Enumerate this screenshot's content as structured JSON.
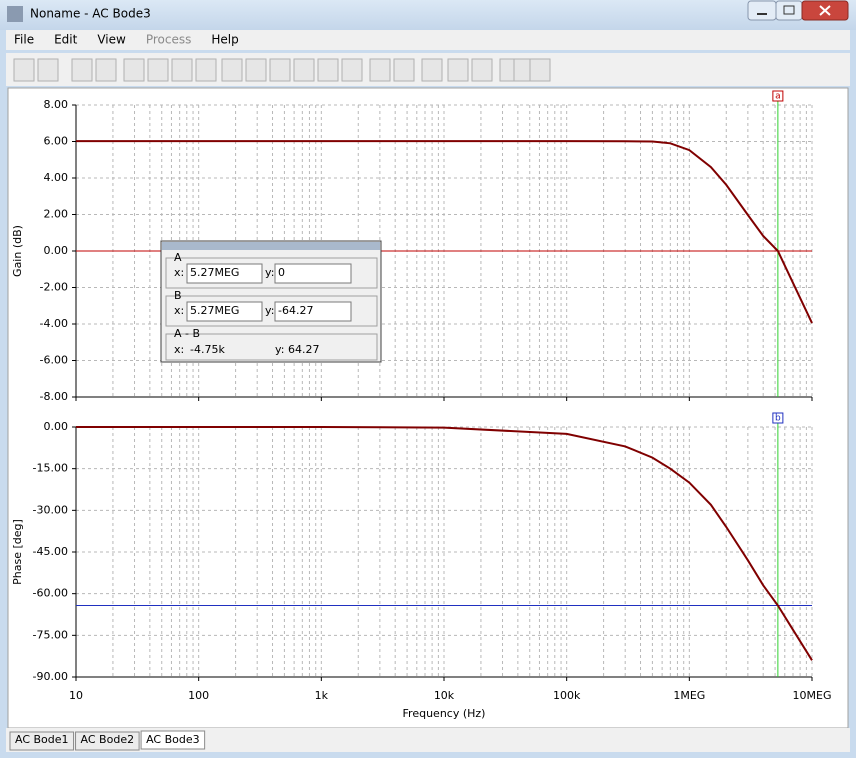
{
  "window": {
    "title": "Noname - AC Bode3"
  },
  "menu": [
    {
      "label": "File",
      "enabled": true
    },
    {
      "label": "Edit",
      "enabled": true
    },
    {
      "label": "View",
      "enabled": true
    },
    {
      "label": "Process",
      "enabled": false
    },
    {
      "label": "Help",
      "enabled": true
    }
  ],
  "chart_data": [
    {
      "type": "line",
      "ylabel": "Gain (dB)",
      "xscale": "log",
      "grid": true,
      "xlim": [
        10,
        10000000
      ],
      "xticks": [
        10,
        100,
        1000,
        10000,
        100000,
        1000000,
        10000000
      ],
      "ylim": [
        -8,
        8
      ],
      "yticks": [
        {
          "value": 8,
          "label": "8.00"
        },
        {
          "value": 6,
          "label": "6.00"
        },
        {
          "value": 4,
          "label": "4.00"
        },
        {
          "value": 2,
          "label": "2.00"
        },
        {
          "value": 0,
          "label": "0.00"
        },
        {
          "value": -2,
          "label": "-2.00"
        },
        {
          "value": -4,
          "label": "-4.00"
        },
        {
          "value": -6,
          "label": "-6.00"
        },
        {
          "value": -8,
          "label": "-8.00"
        }
      ],
      "x": [
        10,
        100,
        1000,
        10000,
        100000,
        300000,
        500000,
        700000,
        1000000,
        1500000,
        2000000,
        3000000,
        4000000,
        5270000,
        7000000,
        10000000
      ],
      "series": [
        {
          "color": "#800000",
          "values": [
            6.02,
            6.02,
            6.02,
            6.02,
            6.02,
            6.01,
            6.0,
            5.9,
            5.53,
            4.6,
            3.62,
            1.97,
            0.82,
            0,
            -1.75,
            -3.95
          ]
        }
      ],
      "cursor": {
        "label": "a",
        "x": 5270000,
        "y": 0,
        "color": "#c00000"
      }
    },
    {
      "type": "line",
      "ylabel": "Phase [deg]",
      "xlabel": "Frequency (Hz)",
      "xscale": "log",
      "grid": true,
      "xlim": [
        10,
        10000000
      ],
      "xticks": [
        10,
        100,
        {
          "value": 1000,
          "label": "1k"
        },
        {
          "value": 10000,
          "label": "10k"
        },
        {
          "value": 100000,
          "label": "100k"
        },
        {
          "value": 1000000,
          "label": "1MEG"
        },
        {
          "value": 10000000,
          "label": "10MEG"
        }
      ],
      "ylim": [
        -90,
        0
      ],
      "yticks": [
        {
          "value": 0,
          "label": "0.00"
        },
        {
          "value": -15,
          "label": "-15.00"
        },
        {
          "value": -30,
          "label": "-30.00"
        },
        {
          "value": -45,
          "label": "-45.00"
        },
        {
          "value": -60,
          "label": "-60.00"
        },
        {
          "value": -75,
          "label": "-75.00"
        },
        {
          "value": -90,
          "label": "-90.00"
        }
      ],
      "x": [
        10,
        100,
        1000,
        10000,
        100000,
        300000,
        500000,
        700000,
        1000000,
        1500000,
        2000000,
        3000000,
        4000000,
        5270000,
        7000000,
        10000000
      ],
      "series": [
        {
          "color": "#800000",
          "values": [
            0,
            0,
            0,
            -0.2,
            -2.5,
            -7,
            -11,
            -15,
            -20,
            -28,
            -36,
            -48,
            -57,
            -64.27,
            -73,
            -84
          ]
        }
      ],
      "cursor": {
        "label": "b",
        "x": 5270000,
        "y": -64.27,
        "color": "#2030c0"
      }
    }
  ],
  "cursor_panel": {
    "sections": [
      {
        "title": "A",
        "x_label": "x:",
        "x": "5.27MEG",
        "y_label": "y:",
        "y": "0"
      },
      {
        "title": "B",
        "x_label": "x:",
        "x": "5.27MEG",
        "y_label": "y:",
        "y": "-64.27"
      },
      {
        "title": "A - B",
        "x_label": "x:",
        "x": "-4.75k",
        "y_label": "y:",
        "y": "64.27"
      }
    ]
  },
  "tabs": [
    "AC Bode1",
    "AC Bode2",
    "AC Bode3"
  ]
}
